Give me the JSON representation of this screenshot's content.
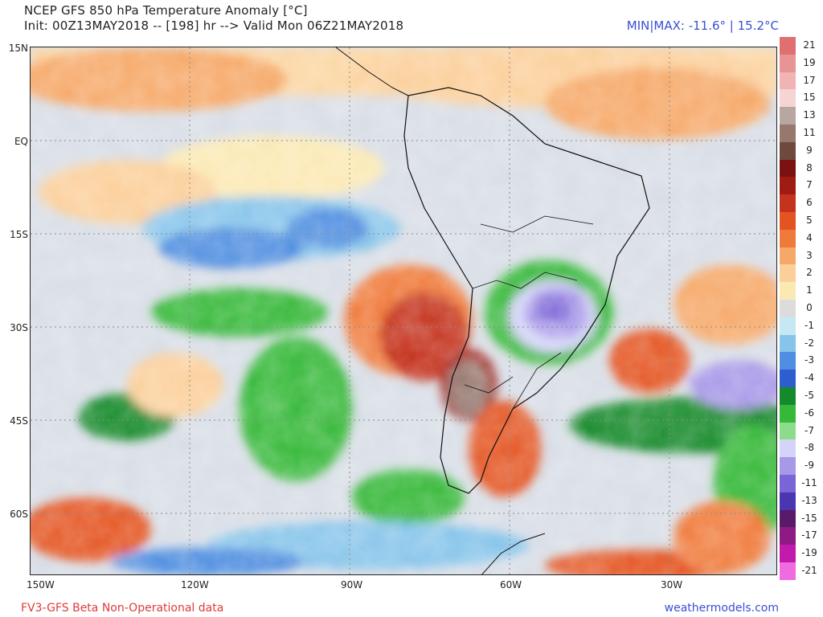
{
  "header": {
    "title": "NCEP GFS 850 hPa Temperature Anomaly [°C]",
    "init_line": "Init: 00Z13MAY2018 -- [198] hr --> Valid Mon 06Z21MAY2018",
    "minmax": "MIN|MAX: -11.6° | 15.2°C"
  },
  "map": {
    "lat_labels": [
      "15N",
      "EQ",
      "15S",
      "30S",
      "45S",
      "60S"
    ],
    "lon_labels": [
      "150W",
      "120W",
      "90W",
      "60W",
      "30W"
    ]
  },
  "colorbar": {
    "labels": [
      "21",
      "19",
      "17",
      "15",
      "13",
      "11",
      "9",
      "8",
      "7",
      "6",
      "5",
      "4",
      "3",
      "2",
      "1",
      "0",
      "-1",
      "-2",
      "-3",
      "-4",
      "-5",
      "-6",
      "-7",
      "-8",
      "-9",
      "-11",
      "-13",
      "-15",
      "-17",
      "-19",
      "-21"
    ],
    "colors": [
      "#e07070",
      "#e89494",
      "#f0b4b4",
      "#f7d4d4",
      "#b8a6a0",
      "#96786e",
      "#6e4a3e",
      "#7a1212",
      "#9e1c14",
      "#c4331c",
      "#e45422",
      "#f07a3a",
      "#f6a868",
      "#fbcf9a",
      "#fbe9b4",
      "#dcdcdc",
      "#c6e8f4",
      "#86c4ea",
      "#4f8ee0",
      "#2c5ed0",
      "#158a2c",
      "#36b838",
      "#8cdc8c",
      "#d4d4f8",
      "#a898e8",
      "#7a64d6",
      "#4a36b0",
      "#5a1a6a",
      "#8e1a86",
      "#c21aac",
      "#f06ae0"
    ],
    "colors_note": "",
    "units_note": ""
  },
  "footer": {
    "left": "FV3-GFS Beta Non-Operational data",
    "right": "weathermodels.com"
  },
  "colors": {
    "minmax_text": "#3a4fd4",
    "footer_left_text": "#e03a3a",
    "footer_right_text": "#3a4fd4"
  }
}
